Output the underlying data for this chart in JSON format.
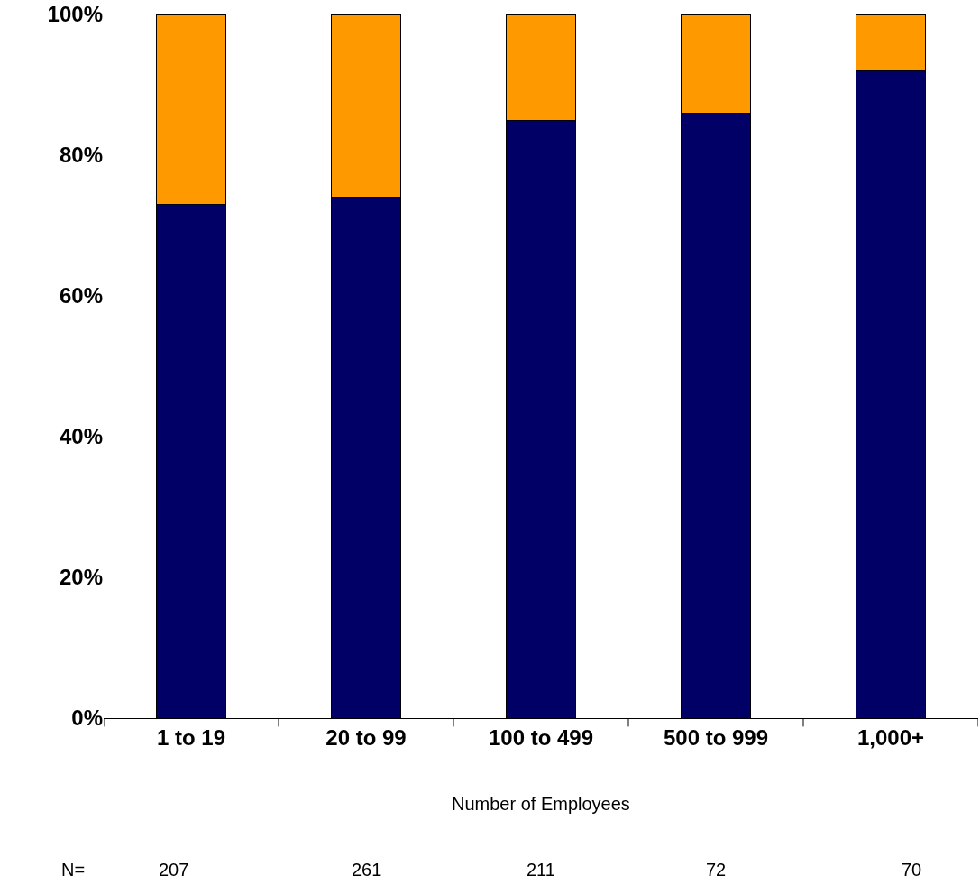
{
  "chart_data": {
    "type": "bar",
    "stacked": true,
    "categories": [
      "1 to 19",
      "20 to 99",
      "100 to 499",
      "500 to 999",
      "1,000+"
    ],
    "series": [
      {
        "color": "#000066",
        "values": [
          73,
          74,
          85,
          86,
          92
        ]
      },
      {
        "color": "#ff9900",
        "values": [
          27,
          26,
          15,
          14,
          8
        ]
      }
    ],
    "xlabel": "Number of Employees",
    "ylim": [
      0,
      100
    ],
    "yticks": [
      {
        "value": 0,
        "label": "0%"
      },
      {
        "value": 20,
        "label": "20%"
      },
      {
        "value": 40,
        "label": "40%"
      },
      {
        "value": 60,
        "label": "60%"
      },
      {
        "value": 80,
        "label": "80%"
      },
      {
        "value": 100,
        "label": "100%"
      }
    ],
    "annotations": [
      "N=",
      "207",
      "261",
      "211",
      "72",
      "70"
    ]
  }
}
